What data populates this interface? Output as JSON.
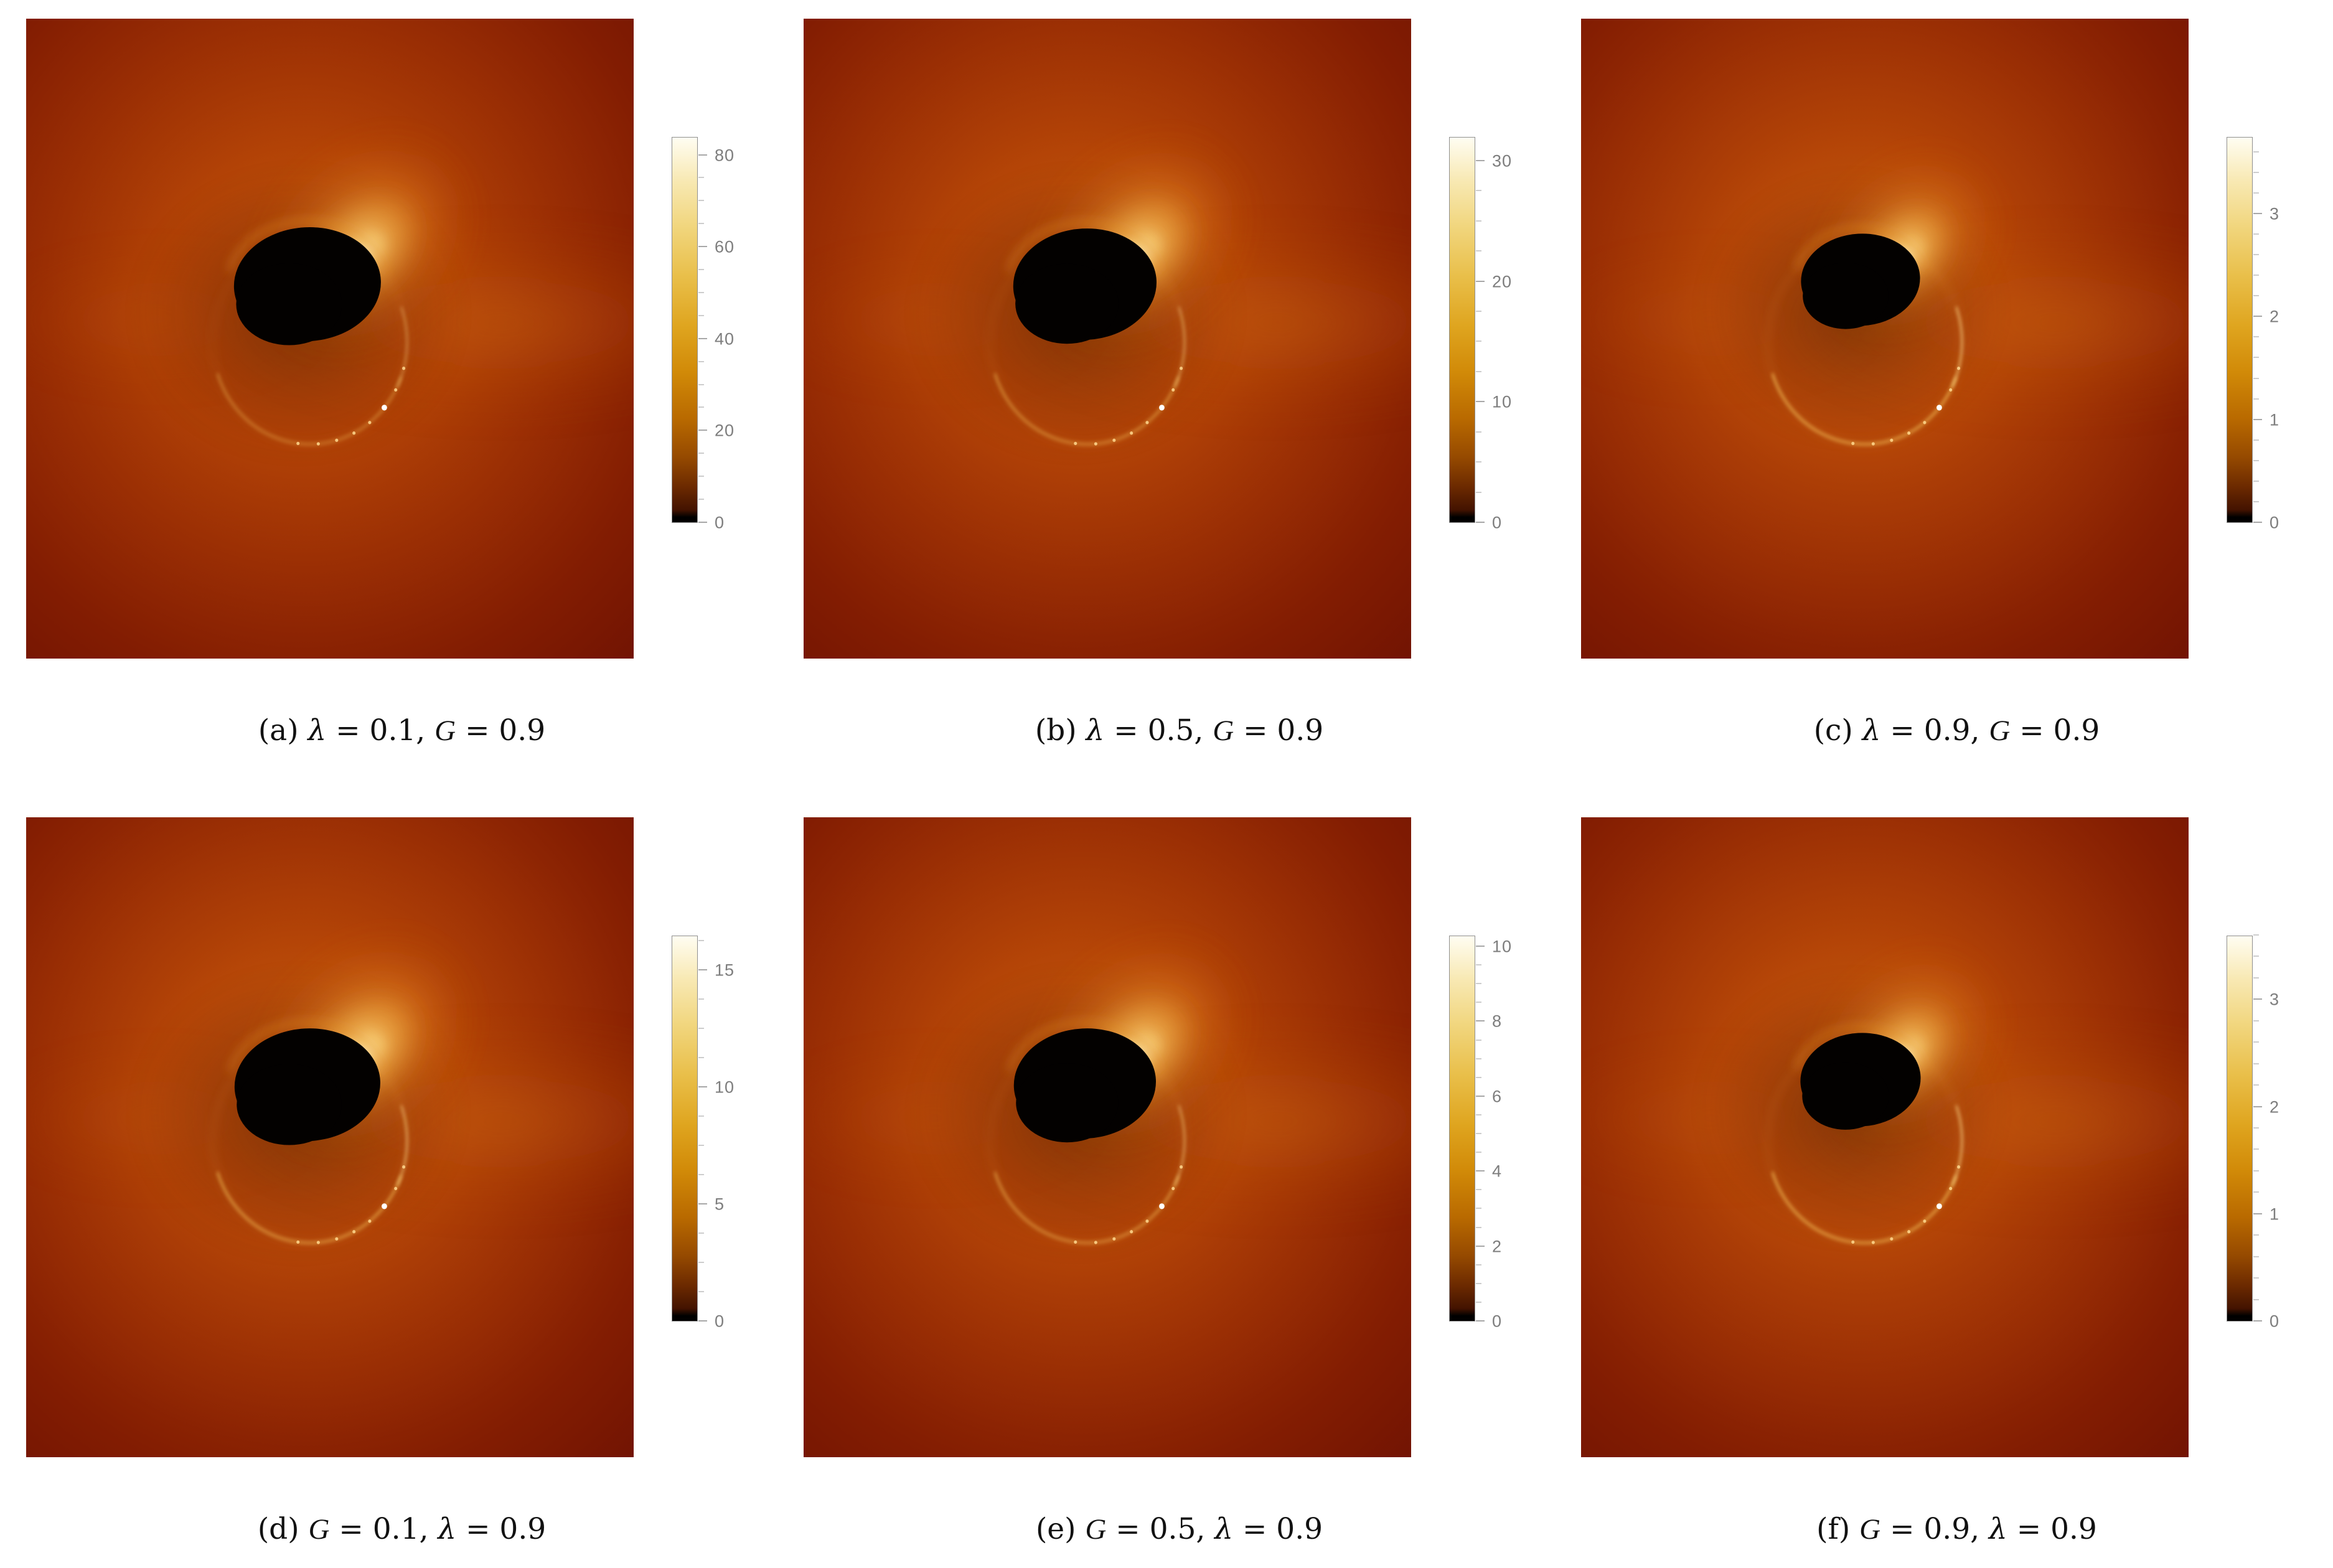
{
  "figure": {
    "description": "2x3 grid of simulated black hole shadow images with accretion disk, each with an intensity colorbar and a parameter caption",
    "colormap": "black to dark red to orange to gold to white"
  },
  "panels": [
    {
      "id": "a",
      "caption_plain": "(a) λ = 0.1, 𝒢 = 0.9",
      "caption_parts": [
        {
          "t": "(a) ",
          "s": "rm"
        },
        {
          "t": "λ",
          "s": "it"
        },
        {
          "t": " = 0.1, ",
          "s": "rm"
        },
        {
          "t": "G",
          "s": "cal"
        },
        {
          "t": " = 0.9",
          "s": "rm"
        }
      ],
      "params": {
        "lambda": 0.1,
        "G": 0.9
      },
      "colorbar": {
        "majors": [
          0,
          20,
          40,
          60,
          80
        ],
        "minor_step": 5,
        "vmax": 84
      },
      "art": {
        "sx": 463,
        "sy": 415,
        "srx": 121,
        "sry": 89,
        "glow": 0.06,
        "ring": 0.5,
        "cres": 0.92
      }
    },
    {
      "id": "b",
      "caption_plain": "(b) λ = 0.5, 𝒢 = 0.9",
      "caption_parts": [
        {
          "t": "(b) ",
          "s": "rm"
        },
        {
          "t": "λ",
          "s": "it"
        },
        {
          "t": " = 0.5, ",
          "s": "rm"
        },
        {
          "t": "G",
          "s": "cal"
        },
        {
          "t": " = 0.9",
          "s": "rm"
        }
      ],
      "params": {
        "lambda": 0.5,
        "G": 0.9
      },
      "colorbar": {
        "majors": [
          0,
          10,
          20,
          30
        ],
        "minor_step": 2.5,
        "vmax": 32
      },
      "art": {
        "sx": 463,
        "sy": 415,
        "srx": 118,
        "sry": 87,
        "glow": 0.16,
        "ring": 0.62,
        "cres": 0.95
      }
    },
    {
      "id": "c",
      "caption_plain": "(c) λ = 0.9, 𝒢 = 0.9",
      "caption_parts": [
        {
          "t": "(c) ",
          "s": "rm"
        },
        {
          "t": "λ",
          "s": "it"
        },
        {
          "t": " = 0.9, ",
          "s": "rm"
        },
        {
          "t": "G",
          "s": "cal"
        },
        {
          "t": " = 0.9",
          "s": "rm"
        }
      ],
      "params": {
        "lambda": 0.9,
        "G": 0.9
      },
      "colorbar": {
        "majors": [
          0,
          1,
          2,
          3
        ],
        "minor_step": 0.2,
        "vmax": 3.75
      },
      "art": {
        "sx": 460,
        "sy": 408,
        "srx": 98,
        "sry": 72,
        "glow": 0.3,
        "ring": 0.85,
        "cres": 1.0
      }
    },
    {
      "id": "d",
      "caption_plain": "(d) 𝒢 = 0.1, λ = 0.9",
      "caption_parts": [
        {
          "t": "(d) ",
          "s": "rm"
        },
        {
          "t": "G",
          "s": "cal"
        },
        {
          "t": " = 0.1, ",
          "s": "rm"
        },
        {
          "t": "λ",
          "s": "it"
        },
        {
          "t": " = 0.9",
          "s": "rm"
        }
      ],
      "params": {
        "G": 0.1,
        "lambda": 0.9
      },
      "colorbar": {
        "majors": [
          0,
          5,
          10,
          15
        ],
        "minor_step": 1.25,
        "vmax": 16.5
      },
      "art": {
        "sx": 463,
        "sy": 418,
        "srx": 120,
        "sry": 88,
        "glow": 0.28,
        "ring": 0.75,
        "cres": 1.0
      }
    },
    {
      "id": "e",
      "caption_plain": "(e) 𝒢 = 0.5, λ = 0.9",
      "caption_parts": [
        {
          "t": "(e) ",
          "s": "rm"
        },
        {
          "t": "G",
          "s": "cal"
        },
        {
          "t": " = 0.5, ",
          "s": "rm"
        },
        {
          "t": "λ",
          "s": "it"
        },
        {
          "t": " = 0.9",
          "s": "rm"
        }
      ],
      "params": {
        "G": 0.5,
        "lambda": 0.9
      },
      "colorbar": {
        "majors": [
          0,
          2,
          4,
          6,
          8,
          10
        ],
        "minor_step": 0.5,
        "vmax": 10.3
      },
      "art": {
        "sx": 463,
        "sy": 416,
        "srx": 117,
        "sry": 86,
        "glow": 0.2,
        "ring": 0.66,
        "cres": 0.95
      }
    },
    {
      "id": "f",
      "caption_plain": "(f) 𝒢 = 0.9, λ = 0.9",
      "caption_parts": [
        {
          "t": "(f) ",
          "s": "rm"
        },
        {
          "t": "G",
          "s": "cal"
        },
        {
          "t": " = 0.9, ",
          "s": "rm"
        },
        {
          "t": "λ",
          "s": "it"
        },
        {
          "t": " = 0.9",
          "s": "rm"
        }
      ],
      "params": {
        "G": 0.9,
        "lambda": 0.9
      },
      "colorbar": {
        "majors": [
          0,
          1,
          2,
          3
        ],
        "minor_step": 0.2,
        "vmax": 3.6
      },
      "art": {
        "sx": 460,
        "sy": 410,
        "srx": 99,
        "sry": 73,
        "glow": 0.3,
        "ring": 0.85,
        "cres": 1.0
      }
    }
  ],
  "chart_data": [
    {
      "type": "heatmap",
      "panel": "a",
      "title": "(a) λ = 0.1, 𝒢 = 0.9",
      "parameters": {
        "lambda": 0.1,
        "G": 0.9
      },
      "colorbar_ticks": [
        0,
        20,
        40,
        60,
        80
      ],
      "colorbar_range": [
        0,
        84
      ],
      "legend_position": "right",
      "content": "black hole shadow with lensed accretion disk glow, bright crescent upper-right of shadow, thin photon ring below"
    },
    {
      "type": "heatmap",
      "panel": "b",
      "title": "(b) λ = 0.5, 𝒢 = 0.9",
      "parameters": {
        "lambda": 0.5,
        "G": 0.9
      },
      "colorbar_ticks": [
        0,
        10,
        20,
        30
      ],
      "colorbar_range": [
        0,
        32
      ],
      "legend_position": "right",
      "content": "black hole shadow with lensed accretion disk glow, bright crescent upper-right of shadow, thin photon ring below"
    },
    {
      "type": "heatmap",
      "panel": "c",
      "title": "(c) λ = 0.9, 𝒢 = 0.9",
      "parameters": {
        "lambda": 0.9,
        "G": 0.9
      },
      "colorbar_ticks": [
        0,
        1,
        2,
        3
      ],
      "colorbar_range": [
        0,
        3.75
      ],
      "legend_position": "right",
      "content": "smaller black hole shadow, pronounced photon ring separated from shadow"
    },
    {
      "type": "heatmap",
      "panel": "d",
      "title": "(d) 𝒢 = 0.1, λ = 0.9",
      "parameters": {
        "G": 0.1,
        "lambda": 0.9
      },
      "colorbar_ticks": [
        0,
        5,
        10,
        15
      ],
      "colorbar_range": [
        0,
        16.5
      ],
      "legend_position": "right",
      "content": "black hole shadow with bright extended crescent and dotted photon ring"
    },
    {
      "type": "heatmap",
      "panel": "e",
      "title": "(e) 𝒢 = 0.5, λ = 0.9",
      "parameters": {
        "G": 0.5,
        "lambda": 0.9
      },
      "colorbar_ticks": [
        0,
        2,
        4,
        6,
        8,
        10
      ],
      "colorbar_range": [
        0,
        10.3
      ],
      "legend_position": "right",
      "content": "black hole shadow with lensed accretion disk glow and photon ring"
    },
    {
      "type": "heatmap",
      "panel": "f",
      "title": "(f) 𝒢 = 0.9, λ = 0.9",
      "parameters": {
        "G": 0.9,
        "lambda": 0.9
      },
      "colorbar_ticks": [
        0,
        1,
        2,
        3
      ],
      "colorbar_range": [
        0,
        3.6
      ],
      "legend_position": "right",
      "content": "smaller black hole shadow, pronounced photon ring separated from shadow"
    }
  ]
}
